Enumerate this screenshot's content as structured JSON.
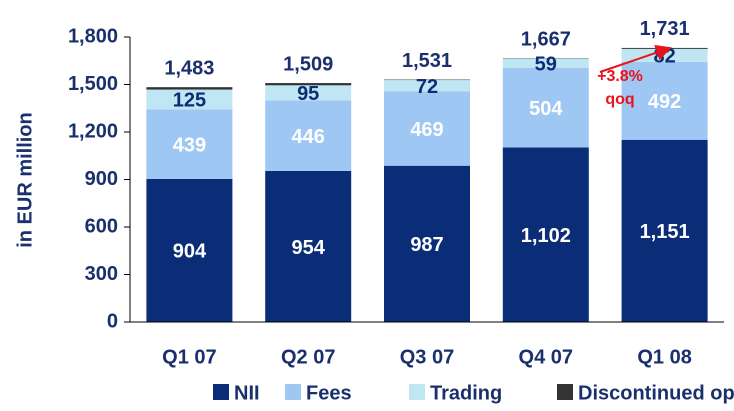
{
  "chart_data": {
    "type": "stacked_bar",
    "ylabel": "in EUR million",
    "categories": [
      "Q1 07",
      "Q2 07",
      "Q3 07",
      "Q4 07",
      "Q1 08"
    ],
    "series": [
      {
        "name": "NII",
        "color": "#0b2d78",
        "label_color": "#ffffff",
        "values": [
          904,
          954,
          987,
          1102,
          1151
        ],
        "value_labels": [
          "904",
          "954",
          "987",
          "1,102",
          "1,151"
        ]
      },
      {
        "name": "Fees",
        "color": "#9fc7f4",
        "label_color": "#ffffff",
        "values": [
          439,
          446,
          469,
          504,
          492
        ]
      },
      {
        "name": "Trading",
        "color": "#bfe6f2",
        "label_color": "#0b2d78",
        "values": [
          125,
          95,
          72,
          59,
          82
        ]
      },
      {
        "name": "Discontinued ops",
        "color": "#333333",
        "values": [
          15,
          14,
          3,
          2,
          6
        ]
      }
    ],
    "totals": [
      1483,
      1509,
      1531,
      1667,
      1731
    ],
    "total_labels": [
      "1,483",
      "1,509",
      "1,531",
      "1,667",
      "1,731"
    ],
    "annotation": [
      "+3.8%",
      "qoq"
    ],
    "annotation_color": "#e8141c",
    "ylim": [
      0,
      1800
    ],
    "yticks": [
      0,
      300,
      600,
      900,
      {
        "value": 1200,
        "label": "1,200"
      },
      {
        "value": 1500,
        "label": "1,500"
      },
      {
        "value": 1800,
        "label": "1,800"
      }
    ]
  }
}
